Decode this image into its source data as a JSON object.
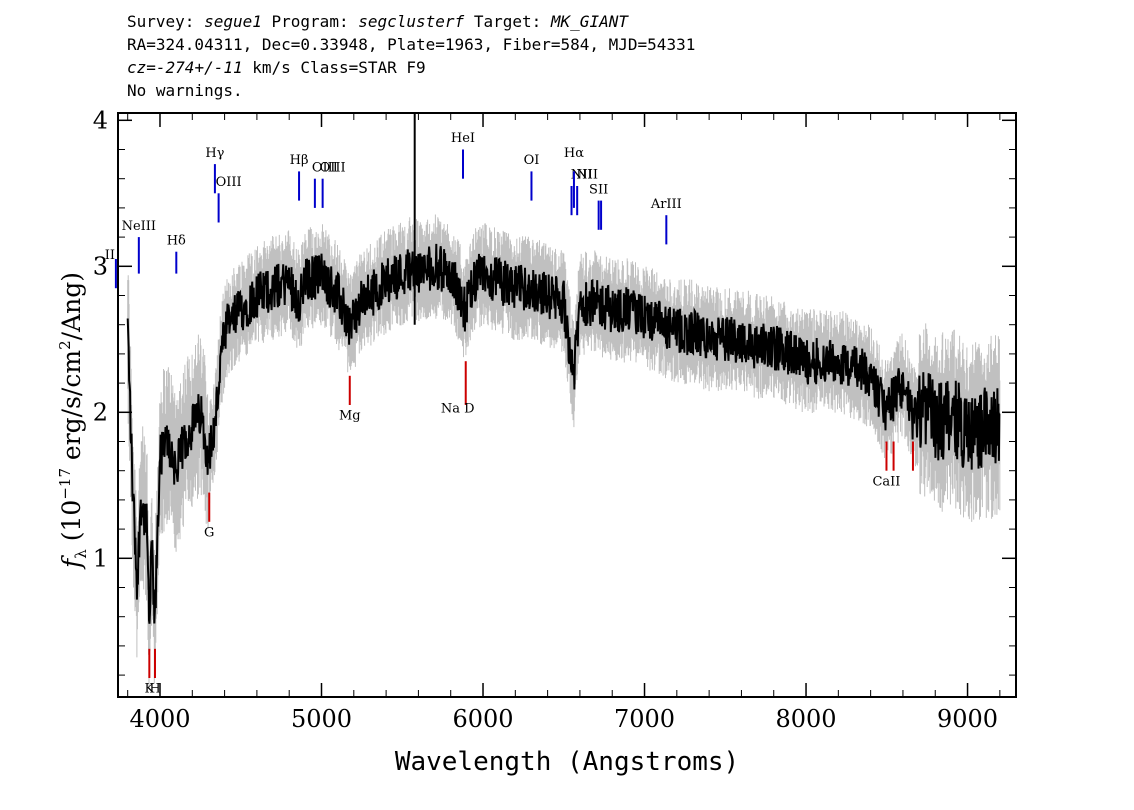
{
  "header": {
    "survey_label": "Survey:",
    "survey": "segue1",
    "program_label": "Program:",
    "program": "segclusterf",
    "target_label": "Target:",
    "target": "MK_GIANT",
    "line2": "RA=324.04311, Dec=0.33948, Plate=1963, Fiber=584, MJD=54331",
    "cz_label": "cz=",
    "cz": "-274+/-11",
    "cz_unit": "km/s",
    "class": "Class=STAR F9",
    "warnings": "No warnings."
  },
  "colors": {
    "flux": "#000000",
    "error_band": "#c0c0c0",
    "emission_line": "#0000cc",
    "absorption_line": "#cc0000"
  },
  "chart_data": {
    "type": "line",
    "xlabel": "Wavelength (Angstroms)",
    "ylabel": "f_λ (10^-17 erg/s/cm^2/Ang)",
    "xlim": [
      3740,
      9300
    ],
    "ylim": [
      0.05,
      4.05
    ],
    "xticks": [
      4000,
      5000,
      6000,
      7000,
      8000,
      9000
    ],
    "yticks": [
      1,
      2,
      3,
      4
    ],
    "series": [
      {
        "x": [
          3800,
          3830,
          3860,
          3880,
          3900,
          3920,
          3933,
          3950,
          3968,
          3985,
          4000,
          4050,
          4101,
          4150,
          4200,
          4250,
          4300,
          4340,
          4380,
          4420,
          4500,
          4600,
          4700,
          4800,
          4861,
          4900,
          5000,
          5100,
          5175,
          5250,
          5300,
          5400,
          5500,
          5577,
          5600,
          5700,
          5800,
          5893,
          5950,
          6000,
          6100,
          6200,
          6300,
          6400,
          6500,
          6563,
          6600,
          6700,
          6800,
          6900,
          7000,
          7100,
          7200,
          7300,
          7400,
          7500,
          7600,
          7700,
          7800,
          7900,
          8000,
          8100,
          8200,
          8300,
          8400,
          8498,
          8542,
          8600,
          8662,
          8750,
          8800,
          8900,
          9000,
          9100,
          9200
        ],
        "y": [
          2.6,
          1.5,
          0.8,
          1.4,
          1.3,
          1.2,
          0.5,
          1.1,
          0.5,
          1.2,
          1.7,
          1.8,
          1.6,
          1.8,
          1.9,
          2.0,
          1.7,
          1.9,
          2.4,
          2.6,
          2.7,
          2.8,
          2.85,
          2.9,
          2.75,
          2.9,
          2.95,
          2.8,
          2.6,
          2.75,
          2.8,
          2.9,
          2.95,
          3.0,
          2.95,
          3.0,
          2.95,
          2.7,
          2.9,
          2.95,
          2.9,
          2.85,
          2.85,
          2.8,
          2.75,
          2.25,
          2.75,
          2.75,
          2.7,
          2.7,
          2.65,
          2.6,
          2.55,
          2.55,
          2.5,
          2.5,
          2.5,
          2.45,
          2.45,
          2.4,
          2.35,
          2.35,
          2.35,
          2.3,
          2.25,
          2.0,
          2.1,
          2.2,
          1.95,
          2.05,
          1.9,
          2.0,
          1.85,
          1.9,
          1.9
        ]
      }
    ],
    "line_markers": [
      {
        "name": "II",
        "x": 3727,
        "kind": "emission"
      },
      {
        "name": "NeIII",
        "x": 3869,
        "kind": "emission"
      },
      {
        "name": "Hδ",
        "x": 4101,
        "kind": "emission"
      },
      {
        "name": "Hγ",
        "x": 4340,
        "kind": "emission"
      },
      {
        "name": "OIII",
        "x": 4363,
        "kind": "emission"
      },
      {
        "name": "Hβ",
        "x": 4861,
        "kind": "emission"
      },
      {
        "name": "OIII",
        "x": 4959,
        "kind": "emission"
      },
      {
        "name": "OIII",
        "x": 5007,
        "kind": "emission"
      },
      {
        "name": "HeI",
        "x": 5876,
        "kind": "emission"
      },
      {
        "name": "OI",
        "x": 6300,
        "kind": "emission"
      },
      {
        "name": "NII",
        "x": 6548,
        "kind": "emission"
      },
      {
        "name": "Hα",
        "x": 6563,
        "kind": "emission"
      },
      {
        "name": "NII",
        "x": 6583,
        "kind": "emission"
      },
      {
        "name": "SII",
        "x": 6716,
        "kind": "emission"
      },
      {
        "name": "SII",
        "x": 6731,
        "kind": "emission"
      },
      {
        "name": "ArIII",
        "x": 7135,
        "kind": "emission"
      },
      {
        "name": "K",
        "x": 3934,
        "kind": "absorption"
      },
      {
        "name": "H",
        "x": 3969,
        "kind": "absorption"
      },
      {
        "name": "G",
        "x": 4305,
        "kind": "absorption"
      },
      {
        "name": "Mg",
        "x": 5175,
        "kind": "absorption"
      },
      {
        "name": "Na D",
        "x": 5893,
        "kind": "absorption"
      },
      {
        "name": "CaII",
        "x": 8498,
        "kind": "absorption"
      },
      {
        "name": "CaII",
        "x": 8542,
        "kind": "absorption"
      },
      {
        "name": "CaII",
        "x": 8662,
        "kind": "absorption"
      }
    ]
  }
}
